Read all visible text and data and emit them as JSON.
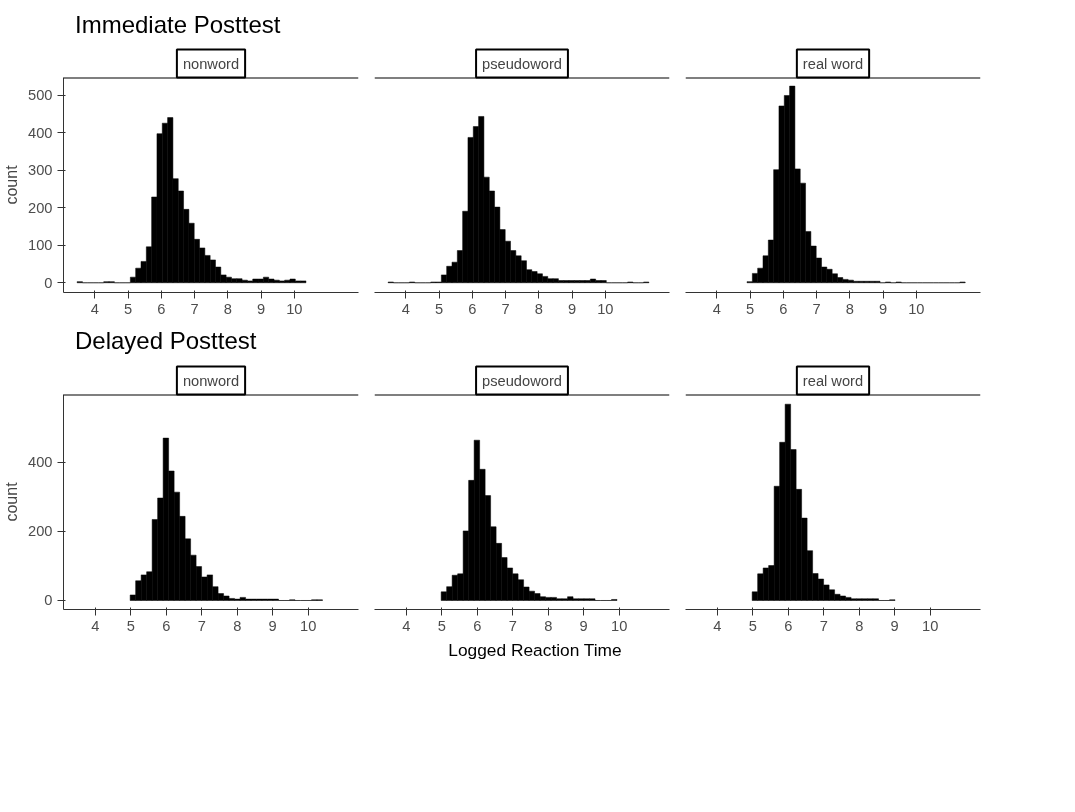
{
  "chart_data": [
    {
      "type": "histogram",
      "title": "Immediate Posttest",
      "subtitle": "nonword",
      "ylabel": "count",
      "color": "#000000",
      "grid": false,
      "xlim": [
        3.06,
        11.93
      ],
      "ylim": [
        -26,
        548
      ],
      "xticks": [
        4,
        5,
        6,
        7,
        8,
        9,
        10
      ],
      "yticks": [
        0,
        100,
        200,
        300,
        400,
        500
      ],
      "bins": [
        3.47,
        3.63,
        3.79,
        3.95,
        4.11,
        4.27,
        4.43,
        4.59,
        4.75,
        4.91,
        5.07,
        5.23,
        5.39,
        5.55,
        5.71,
        5.87,
        6.03,
        6.19,
        6.35,
        6.51,
        6.67,
        6.83,
        6.99,
        7.15,
        7.31,
        7.47,
        7.63,
        7.79,
        7.95,
        8.11,
        8.27,
        8.43,
        8.59,
        8.75,
        8.91,
        9.07,
        9.23,
        9.39,
        9.55,
        9.71,
        9.87,
        10.03,
        10.19,
        10.35
      ],
      "values": [
        3,
        0,
        0,
        0,
        0,
        3,
        3,
        0,
        0,
        0,
        15,
        39,
        57,
        96,
        229,
        398,
        426,
        441,
        278,
        245,
        196,
        159,
        116,
        93,
        73,
        61,
        42,
        21,
        15,
        11,
        11,
        7,
        5,
        10,
        10,
        15,
        10,
        7,
        5,
        7,
        10,
        5,
        5
      ]
    },
    {
      "type": "histogram",
      "subtitle": "pseudoword",
      "color": "#000000",
      "grid": false,
      "tick_labels": "x",
      "xlim": [
        3.06,
        11.93
      ],
      "ylim": [
        -26,
        548
      ],
      "xticks": [
        4,
        5,
        6,
        7,
        8,
        9,
        10
      ],
      "bins": [
        3.47,
        3.63,
        3.79,
        3.95,
        4.11,
        4.27,
        4.43,
        4.59,
        4.75,
        4.91,
        5.07,
        5.23,
        5.39,
        5.55,
        5.71,
        5.87,
        6.03,
        6.19,
        6.35,
        6.51,
        6.67,
        6.83,
        6.99,
        7.15,
        7.31,
        7.47,
        7.63,
        7.79,
        7.95,
        8.11,
        8.27,
        8.43,
        8.59,
        8.75,
        8.91,
        9.07,
        9.23,
        9.39,
        9.55,
        9.71,
        9.87,
        10.03,
        10.19,
        10.35,
        10.51,
        10.67,
        10.83,
        10.99,
        11.15,
        11.31
      ],
      "values": [
        2,
        0,
        0,
        0,
        2,
        0,
        0,
        0,
        2,
        2,
        21,
        44,
        55,
        86,
        191,
        388,
        417,
        444,
        282,
        245,
        202,
        142,
        111,
        86,
        72,
        59,
        35,
        30,
        24,
        17,
        11,
        11,
        6,
        6,
        6,
        6,
        6,
        6,
        10,
        6,
        6,
        0,
        0,
        0,
        0,
        2,
        0,
        0,
        2
      ]
    },
    {
      "type": "histogram",
      "subtitle": "real word",
      "color": "#000000",
      "grid": false,
      "tick_labels": "x",
      "xlim": [
        3.06,
        11.93
      ],
      "ylim": [
        -26,
        548
      ],
      "xticks": [
        4,
        5,
        6,
        7,
        8,
        9,
        10
      ],
      "bins": [
        4.91,
        5.07,
        5.23,
        5.39,
        5.55,
        5.71,
        5.87,
        6.03,
        6.19,
        6.35,
        6.51,
        6.67,
        6.83,
        6.99,
        7.15,
        7.31,
        7.47,
        7.63,
        7.79,
        7.95,
        8.11,
        8.27,
        8.43,
        8.59,
        8.75,
        8.91,
        9.07,
        9.23,
        9.39,
        9.55,
        9.71,
        9.87,
        10.03,
        10.19,
        10.35,
        10.51,
        10.67,
        10.83,
        10.99,
        11.15,
        11.31,
        11.47
      ],
      "values": [
        3,
        25,
        39,
        72,
        114,
        302,
        472,
        500,
        525,
        304,
        266,
        137,
        98,
        66,
        42,
        36,
        24,
        14,
        9,
        7,
        4,
        4,
        4,
        4,
        4,
        0,
        2,
        0,
        2,
        0,
        0,
        0,
        0,
        0,
        0,
        0,
        0,
        0,
        0,
        0,
        2
      ]
    },
    {
      "type": "histogram",
      "title": "Delayed Posttest",
      "subtitle": "nonword",
      "ylabel": "count",
      "color": "#000000",
      "grid": false,
      "xlim": [
        3.1,
        11.42
      ],
      "ylim": [
        -26,
        595
      ],
      "xticks": [
        4,
        5,
        6,
        7,
        8,
        9,
        10
      ],
      "yticks": [
        0,
        200,
        400
      ],
      "bins": [
        4.98,
        5.135,
        5.29,
        5.445,
        5.6,
        5.755,
        5.91,
        6.065,
        6.22,
        6.375,
        6.53,
        6.685,
        6.84,
        6.995,
        7.15,
        7.305,
        7.46,
        7.615,
        7.77,
        7.925,
        8.08,
        8.235,
        8.39,
        8.545,
        8.7,
        8.855,
        9.01,
        9.165,
        9.32,
        9.475,
        9.63,
        9.785,
        9.94,
        10.095,
        10.25,
        10.405
      ],
      "values": [
        16,
        57,
        74,
        83,
        234,
        296,
        469,
        374,
        313,
        243,
        178,
        131,
        98,
        68,
        74,
        40,
        20,
        13,
        6,
        4,
        9,
        4,
        4,
        4,
        4,
        4,
        4,
        0,
        0,
        2,
        0,
        0,
        0,
        2,
        2
      ]
    },
    {
      "type": "histogram",
      "subtitle": "pseudoword",
      "xlabel": "Logged Reaction Time",
      "color": "#000000",
      "grid": false,
      "tick_labels": "x",
      "xlim": [
        3.1,
        11.42
      ],
      "ylim": [
        -26,
        595
      ],
      "xticks": [
        4,
        5,
        6,
        7,
        8,
        9,
        10
      ],
      "bins": [
        4.98,
        5.135,
        5.29,
        5.445,
        5.6,
        5.755,
        5.91,
        6.065,
        6.22,
        6.375,
        6.53,
        6.685,
        6.84,
        6.995,
        7.15,
        7.305,
        7.46,
        7.615,
        7.77,
        7.925,
        8.08,
        8.235,
        8.39,
        8.545,
        8.7,
        8.855,
        9.01,
        9.165,
        9.32,
        9.475,
        9.63,
        9.785,
        9.94
      ],
      "values": [
        25,
        40,
        73,
        77,
        201,
        347,
        463,
        379,
        303,
        213,
        165,
        124,
        94,
        77,
        60,
        39,
        27,
        20,
        11,
        9,
        9,
        5,
        5,
        11,
        5,
        5,
        5,
        5,
        0,
        0,
        0,
        3
      ]
    },
    {
      "type": "histogram",
      "subtitle": "real word",
      "color": "#000000",
      "grid": false,
      "tick_labels": "x",
      "xlim": [
        3.1,
        11.42
      ],
      "ylim": [
        -26,
        595
      ],
      "xticks": [
        4,
        5,
        6,
        7,
        8,
        9,
        10
      ],
      "bins": [
        4.98,
        5.135,
        5.29,
        5.445,
        5.6,
        5.755,
        5.91,
        6.065,
        6.22,
        6.375,
        6.53,
        6.685,
        6.84,
        6.995,
        7.15,
        7.305,
        7.46,
        7.615,
        7.77,
        7.925,
        8.08,
        8.235,
        8.39,
        8.545,
        8.7,
        8.855,
        9.01
      ],
      "values": [
        25,
        77,
        94,
        101,
        330,
        457,
        567,
        436,
        321,
        238,
        144,
        78,
        62,
        45,
        31,
        18,
        13,
        9,
        5,
        5,
        5,
        5,
        5,
        0,
        0,
        2
      ]
    }
  ]
}
